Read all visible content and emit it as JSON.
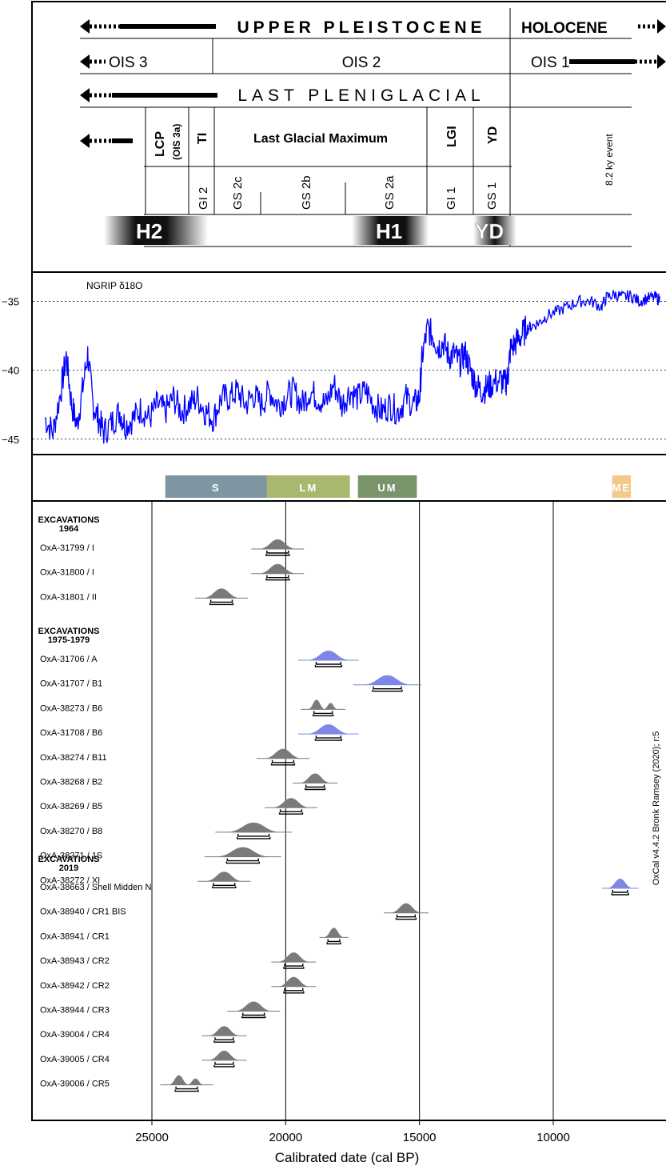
{
  "header": {
    "row1": {
      "upper_pleistocene": "UPPER PLEISTOCENE",
      "holocene": "HOLOCENE"
    },
    "row2": {
      "ois3": "OIS 3",
      "ois2": "OIS 2",
      "ois1": "OIS 1"
    },
    "row3": {
      "last_pleniglacial": "LAST PLENIGLACIAL"
    },
    "row4": {
      "lcp": "LCP",
      "ois3a": "(OIS 3a)",
      "ti": "TI",
      "lgm": "Last Glacial Maximum",
      "lgi": "LGI",
      "yd": "YD"
    },
    "row5": {
      "gi2": "GI 2",
      "gs2c": "GS 2c",
      "gs2b": "GS 2b",
      "gs2a": "GS 2a",
      "gi1": "GI 1",
      "gs1": "GS 1",
      "event": "8.2 ky event"
    },
    "heinrich": {
      "h2": "H2",
      "h1": "H1",
      "yd": "YD"
    }
  },
  "colors": {
    "ngrip_line": "#0000ff",
    "sample_gray": "#7a7a7a",
    "sample_blue": "#7f86e6",
    "phase_s": "#7d96a2",
    "phase_lm": "#a8b86f",
    "phase_um": "#79936a",
    "phase_me": "#f2c98a"
  },
  "phases": [
    {
      "label": "S",
      "from": 24500,
      "to": 20700,
      "color": "#7d96a2"
    },
    {
      "label": "LM",
      "from": 20700,
      "to": 17600,
      "color": "#a8b86f"
    },
    {
      "label": "UM",
      "from": 17300,
      "to": 15100,
      "color": "#79936a"
    },
    {
      "label": "ME",
      "from": 7800,
      "to": 7100,
      "color": "#f2c98a"
    }
  ],
  "credit": "OxCal v4.4.2 Bronk Ramsey (2020); r:5",
  "chart_data": [
    {
      "type": "line",
      "series": [
        {
          "name": "NGRIP δ18O"
        }
      ],
      "x_range": [
        29000,
        6000
      ],
      "ylim": [
        -46,
        -33
      ],
      "y_ticks": [
        -35,
        -40,
        -45
      ],
      "grid": "dashed",
      "points": [
        [
          29000,
          -43.5
        ],
        [
          28700,
          -44.5
        ],
        [
          28400,
          -41.5
        ],
        [
          28200,
          -39
        ],
        [
          28000,
          -42.5
        ],
        [
          27800,
          -44
        ],
        [
          27600,
          -41.5
        ],
        [
          27400,
          -38.8
        ],
        [
          27200,
          -42.5
        ],
        [
          27000,
          -43.5
        ],
        [
          26800,
          -44.5
        ],
        [
          26500,
          -43.8
        ],
        [
          26200,
          -43
        ],
        [
          26000,
          -44
        ],
        [
          25700,
          -43.5
        ],
        [
          25400,
          -42.8
        ],
        [
          25100,
          -43.5
        ],
        [
          24800,
          -42.5
        ],
        [
          24500,
          -43
        ],
        [
          24200,
          -42
        ],
        [
          23900,
          -43
        ],
        [
          23600,
          -42.5
        ],
        [
          23300,
          -42
        ],
        [
          23000,
          -43
        ],
        [
          22700,
          -43.5
        ],
        [
          22400,
          -42
        ],
        [
          22100,
          -42
        ],
        [
          21800,
          -41.5
        ],
        [
          21500,
          -42.5
        ],
        [
          21200,
          -41.8
        ],
        [
          20900,
          -42.5
        ],
        [
          20600,
          -41.5
        ],
        [
          20300,
          -42.5
        ],
        [
          20000,
          -42
        ],
        [
          19700,
          -41.5
        ],
        [
          19400,
          -42.5
        ],
        [
          19100,
          -41.5
        ],
        [
          18800,
          -42
        ],
        [
          18500,
          -42.5
        ],
        [
          18200,
          -41
        ],
        [
          17900,
          -42.5
        ],
        [
          17600,
          -41.5
        ],
        [
          17300,
          -42
        ],
        [
          17000,
          -41.5
        ],
        [
          16700,
          -42.5
        ],
        [
          16400,
          -43
        ],
        [
          16100,
          -42.5
        ],
        [
          15800,
          -43
        ],
        [
          15500,
          -42
        ],
        [
          15200,
          -42.5
        ],
        [
          15000,
          -42
        ],
        [
          14900,
          -39
        ],
        [
          14700,
          -37
        ],
        [
          14500,
          -37.5
        ],
        [
          14300,
          -38.3
        ],
        [
          14100,
          -38
        ],
        [
          13900,
          -39
        ],
        [
          13700,
          -38.8
        ],
        [
          13500,
          -39.5
        ],
        [
          13300,
          -38.7
        ],
        [
          13100,
          -40
        ],
        [
          12900,
          -41
        ],
        [
          12700,
          -41.5
        ],
        [
          12500,
          -41.3
        ],
        [
          12300,
          -41
        ],
        [
          12000,
          -40.7
        ],
        [
          11800,
          -41
        ],
        [
          11700,
          -40.5
        ],
        [
          11600,
          -38.5
        ],
        [
          11400,
          -38
        ],
        [
          11200,
          -37.5
        ],
        [
          11000,
          -37
        ],
        [
          10800,
          -36.8
        ],
        [
          10500,
          -36.5
        ],
        [
          10200,
          -36
        ],
        [
          9800,
          -35.7
        ],
        [
          9400,
          -35.3
        ],
        [
          9000,
          -35
        ],
        [
          8600,
          -35
        ],
        [
          8200,
          -35.4
        ],
        [
          8000,
          -34.7
        ],
        [
          7700,
          -34.5
        ],
        [
          7400,
          -34.7
        ],
        [
          7100,
          -34.6
        ],
        [
          6800,
          -35
        ],
        [
          6500,
          -34.8
        ],
        [
          6200,
          -34.7
        ],
        [
          6000,
          -34.9
        ]
      ]
    },
    {
      "type": "scatter",
      "xlabel": "Calibrated date (cal BP)",
      "x_range": [
        29000,
        6000
      ],
      "x_ticks": [
        25000,
        20000,
        15000,
        10000
      ],
      "groups": [
        {
          "title_line1": "EXCAVATIONS",
          "title_line2": "1964",
          "samples": [
            {
              "label": "OxA-31799 / I",
              "median": 20300,
              "spread": 250,
              "color": "gray"
            },
            {
              "label": "OxA-31800 / I",
              "median": 20300,
              "spread": 250,
              "color": "gray"
            },
            {
              "label": "OxA-31801 / II",
              "median": 22400,
              "spread": 250,
              "color": "gray"
            }
          ]
        },
        {
          "title_line1": "EXCAVATIONS",
          "title_line2": "1975-1979",
          "samples": [
            {
              "label": "OxA-31706 / A",
              "median": 18400,
              "spread": 300,
              "color": "blue"
            },
            {
              "label": "OxA-31707 / B1",
              "median": 16200,
              "spread": 350,
              "color": "blue"
            },
            {
              "label": "OxA-38273 / B6",
              "median": 18600,
              "spread": 200,
              "color": "gray",
              "bimodal": true
            },
            {
              "label": "OxA-31708 / B6",
              "median": 18400,
              "spread": 300,
              "color": "blue"
            },
            {
              "label": "OxA-38274 / B11",
              "median": 20100,
              "spread": 250,
              "color": "gray"
            },
            {
              "label": "OxA-38268 / B2",
              "median": 18900,
              "spread": 200,
              "color": "gray"
            },
            {
              "label": "OxA-38269 / B5",
              "median": 19800,
              "spread": 250,
              "color": "gray"
            },
            {
              "label": "OxA-38270 / B8",
              "median": 21200,
              "spread": 400,
              "color": "gray"
            },
            {
              "label": "OxA-38271 / 1S",
              "median": 21600,
              "spread": 400,
              "color": "gray"
            },
            {
              "label": "OxA-38272 / XI",
              "median": 22300,
              "spread": 250,
              "color": "gray"
            }
          ]
        },
        {
          "title_line1": "EXCAVATIONS",
          "title_line2": "2019",
          "samples": [
            {
              "label": "OxA-38663 / Shell Midden N",
              "median": 7500,
              "spread": 150,
              "color": "blue"
            },
            {
              "label": "OxA-38940 / CR1 BIS",
              "median": 15500,
              "spread": 200,
              "color": "gray"
            },
            {
              "label": "OxA-38941 / CR1",
              "median": 18200,
              "spread": 100,
              "color": "gray"
            },
            {
              "label": "OxA-38943 / CR2",
              "median": 19700,
              "spread": 200,
              "color": "gray"
            },
            {
              "label": "OxA-38942 / CR2",
              "median": 19700,
              "spread": 200,
              "color": "gray"
            },
            {
              "label": "OxA-38944 / CR3",
              "median": 21200,
              "spread": 250,
              "color": "gray"
            },
            {
              "label": "OxA-39004 / CR4",
              "median": 22300,
              "spread": 200,
              "color": "gray"
            },
            {
              "label": "OxA-39005 / CR4",
              "median": 22300,
              "spread": 200,
              "color": "gray"
            },
            {
              "label": "OxA-39006 / CR5",
              "median": 23700,
              "spread": 250,
              "color": "gray",
              "bimodal": true
            }
          ]
        }
      ]
    }
  ]
}
